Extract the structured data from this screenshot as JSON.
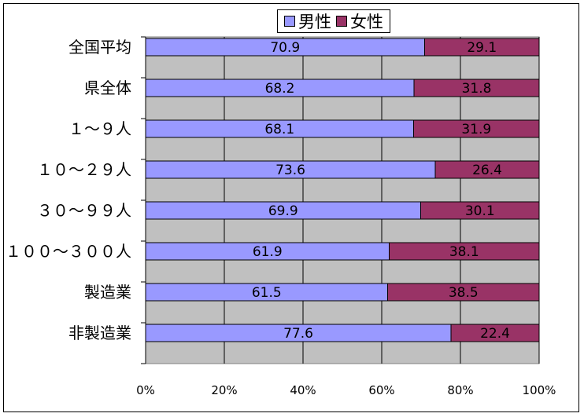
{
  "colors": {
    "male": "#9999ff",
    "female": "#993366",
    "plot_bg": "#c0c0c0"
  },
  "chart_data": {
    "type": "bar",
    "orientation": "horizontal",
    "stacked": "percent",
    "categories": [
      "全国平均",
      "県全体",
      "１～９人",
      "１０～２９人",
      "３０～９９人",
      "１００～３００人",
      "製造業",
      "非製造業"
    ],
    "series": [
      {
        "name": "男性",
        "values": [
          70.9,
          68.2,
          68.1,
          73.6,
          69.9,
          61.9,
          61.5,
          77.6
        ]
      },
      {
        "name": "女性",
        "values": [
          29.1,
          31.8,
          31.9,
          26.4,
          30.1,
          38.1,
          38.5,
          22.4
        ]
      }
    ],
    "x_ticks": [
      "0%",
      "20%",
      "40%",
      "60%",
      "80%",
      "100%"
    ],
    "xlim": [
      0,
      100
    ],
    "grid": true,
    "legend_position": "top"
  }
}
